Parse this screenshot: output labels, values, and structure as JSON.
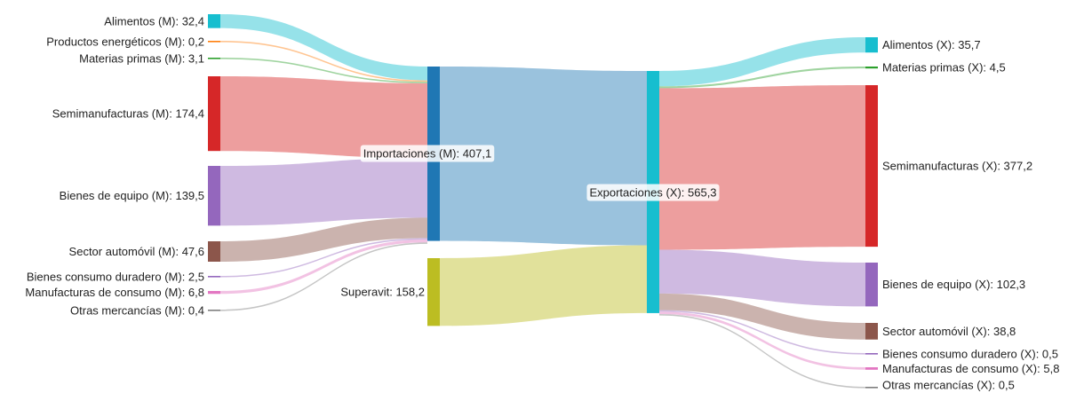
{
  "chart_data": {
    "type": "sankey",
    "unit_note": "",
    "colors": {
      "Alimentos": "#17becf",
      "Productos energéticos": "#ff7f0e",
      "Materias primas": "#2ca02c",
      "Semimanufacturas": "#d62728",
      "Bienes de equipo": "#9467bd",
      "Sector automóvil": "#8c564b",
      "Bienes consumo duradero": "#9467bd",
      "Manufacturas de consumo": "#e377c2",
      "Otras mercancías": "#7f7f7f",
      "Importaciones": "#1f77b4",
      "Exportaciones": "#17becf",
      "Superavit": "#bcbd22"
    },
    "import_nodes": [
      {
        "key": "Alimentos",
        "label": "Alimentos (M): 32,4",
        "value": 32.4
      },
      {
        "key": "Productos energéticos",
        "label": "Productos energéticos (M): 0,2",
        "value": 0.2
      },
      {
        "key": "Materias primas",
        "label": "Materias primas (M): 3,1",
        "value": 3.1
      },
      {
        "key": "Semimanufacturas",
        "label": "Semimanufacturas (M): 174,4",
        "value": 174.4
      },
      {
        "key": "Bienes de equipo",
        "label": "Bienes de equipo (M): 139,5",
        "value": 139.5
      },
      {
        "key": "Sector automóvil",
        "label": "Sector automóvil (M): 47,6",
        "value": 47.6
      },
      {
        "key": "Bienes consumo duradero",
        "label": "Bienes consumo duradero (M): 2,5",
        "value": 2.5
      },
      {
        "key": "Manufacturas de consumo",
        "label": "Manufacturas de consumo (M): 6,8",
        "value": 6.8
      },
      {
        "key": "Otras mercancías",
        "label": "Otras mercancías (M): 0,4",
        "value": 0.4
      }
    ],
    "imports_total": {
      "key": "Importaciones",
      "label": "Importaciones (M): 407,1",
      "value": 407.1
    },
    "surplus": {
      "key": "Superavit",
      "label": "Superavit: 158,2",
      "value": 158.2
    },
    "exports_total": {
      "key": "Exportaciones",
      "label": "Exportaciones (X): 565,3",
      "value": 565.3
    },
    "export_nodes": [
      {
        "key": "Alimentos",
        "label": "Alimentos (X): 35,7",
        "value": 35.7
      },
      {
        "key": "Materias primas",
        "label": "Materias primas (X): 4,5",
        "value": 4.5
      },
      {
        "key": "Semimanufacturas",
        "label": "Semimanufacturas (X): 377,2",
        "value": 377.2
      },
      {
        "key": "Bienes de equipo",
        "label": "Bienes de equipo (X): 102,3",
        "value": 102.3
      },
      {
        "key": "Sector automóvil",
        "label": "Sector automóvil (X): 38,8",
        "value": 38.8
      },
      {
        "key": "Bienes consumo duradero",
        "label": "Bienes consumo duradero (X): 0,5",
        "value": 0.5
      },
      {
        "key": "Manufacturas de consumo",
        "label": "Manufacturas de consumo (X): 5,8",
        "value": 5.8
      },
      {
        "key": "Otras mercancías",
        "label": "Otras mercancías (X): 0,5",
        "value": 0.5
      }
    ]
  }
}
